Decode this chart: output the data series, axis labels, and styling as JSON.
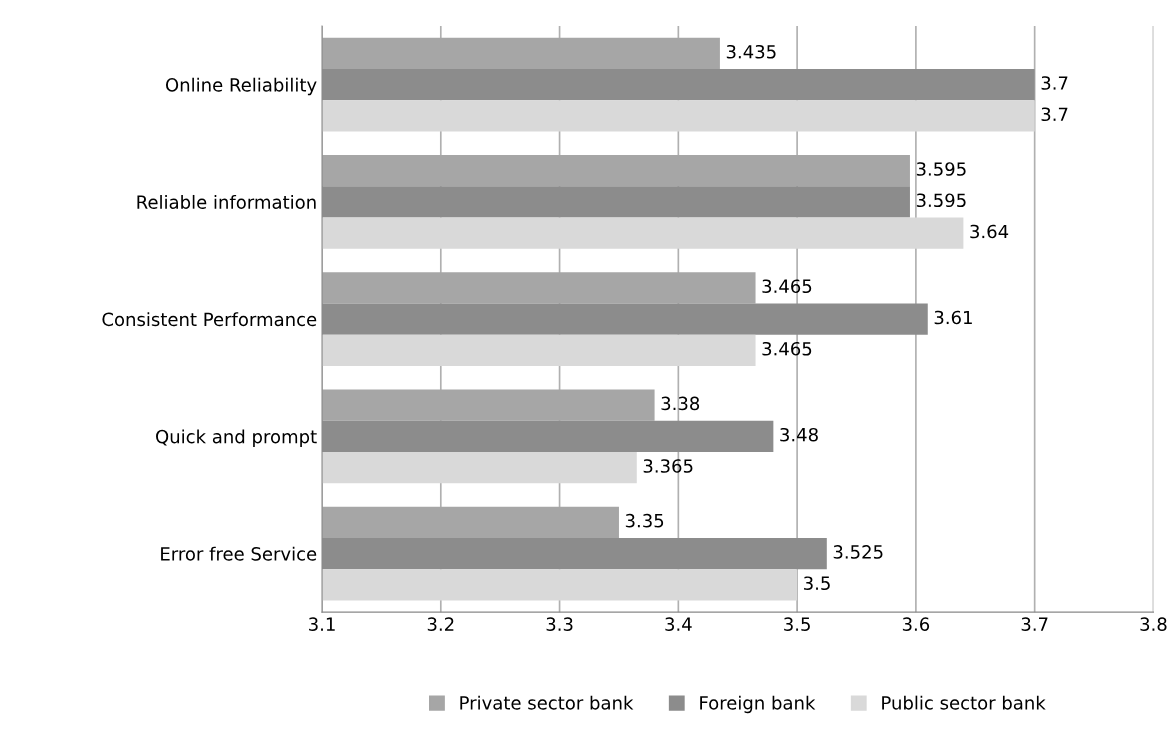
{
  "chart_data": {
    "type": "bar",
    "orientation": "horizontal",
    "categories": [
      "Online Reliability",
      "Reliable information",
      "Consistent Performance",
      "Quick and prompt",
      "Error free Service"
    ],
    "series": [
      {
        "name": "Private sector bank",
        "color": "#a6a6a6",
        "values": [
          3.435,
          3.595,
          3.465,
          3.38,
          3.35
        ]
      },
      {
        "name": "Foreign bank",
        "color": "#8c8c8c",
        "values": [
          3.7,
          3.595,
          3.61,
          3.48,
          3.525
        ]
      },
      {
        "name": "Public sector bank",
        "color": "#d9d9d9",
        "values": [
          3.7,
          3.64,
          3.465,
          3.365,
          3.5
        ]
      }
    ],
    "xlim": [
      3.1,
      3.8
    ],
    "xticks": [
      3.1,
      3.2,
      3.3,
      3.4,
      3.5,
      3.6,
      3.7,
      3.8
    ],
    "grid": "x",
    "legend": "bottom",
    "data_labels": true
  }
}
